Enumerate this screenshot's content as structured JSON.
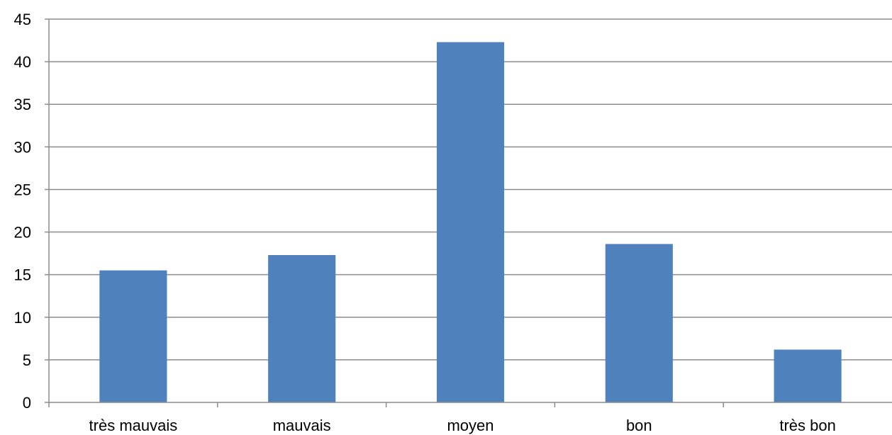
{
  "chart_data": {
    "type": "bar",
    "categories": [
      "très mauvais",
      "mauvais",
      "moyen",
      "bon",
      "très bon"
    ],
    "values": [
      15.5,
      17.3,
      42.3,
      18.6,
      6.2
    ],
    "ylim": [
      0,
      45
    ],
    "yticks": [
      0,
      5,
      10,
      15,
      20,
      25,
      30,
      35,
      40,
      45
    ],
    "grid": true,
    "legend": "none",
    "bar_color": "#4f81bd",
    "grid_color": "#8c8c8c"
  }
}
